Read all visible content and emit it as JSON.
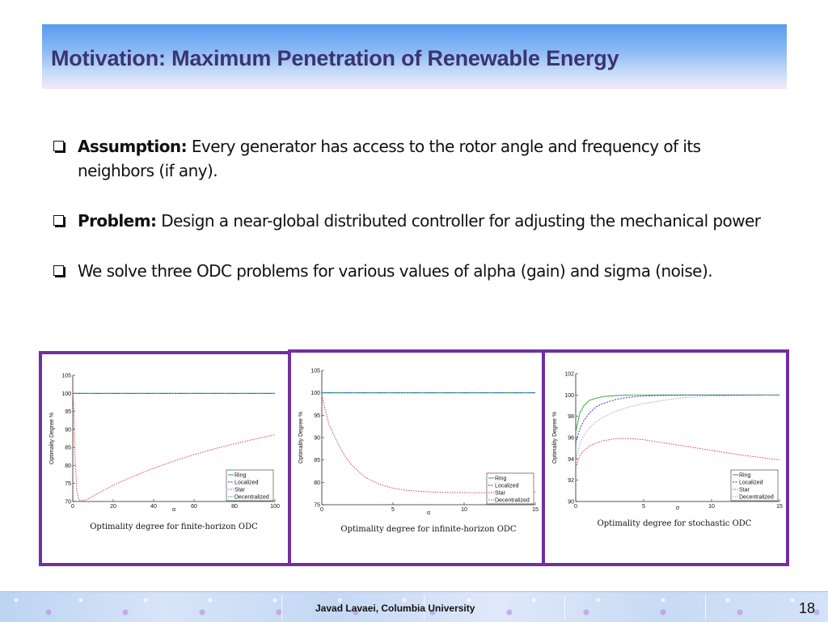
{
  "slide": {
    "title": "Motivation: Maximum Penetration of Renewable Energy",
    "bullets": [
      {
        "lead": "Assumption:",
        "text": " Every generator has access to the rotor angle and frequency of its neighbors (if any)."
      },
      {
        "lead": "Problem:",
        "text": " Design a near-global distributed controller for adjusting the mechanical power"
      },
      {
        "lead": "",
        "text": "We solve three ODC problems for various values of alpha (gain) and sigma (noise)."
      }
    ],
    "footer": {
      "credit": "Javad Lavaei, Columbia University",
      "page_number": "18"
    },
    "frame_color": "#7030a0"
  },
  "chart_data": [
    {
      "type": "line",
      "caption": "Optimality degree for finite-horizon ODC",
      "ylabel": "Optimality Degree %",
      "xlabel": "α",
      "xlim": [
        0,
        100
      ],
      "ylim": [
        70,
        105
      ],
      "xticks": [
        0,
        20,
        40,
        60,
        80,
        100
      ],
      "yticks": [
        70,
        75,
        80,
        85,
        90,
        95,
        100,
        105
      ],
      "legend": [
        "Ring",
        "Localized",
        "Star",
        "Decentralized"
      ],
      "legend_position": "bottom-right",
      "series": [
        {
          "name": "Ring",
          "color": "#20b020",
          "x": [
            0,
            100
          ],
          "y": [
            100,
            100
          ]
        },
        {
          "name": "Localized",
          "color": "#2020e0",
          "x": [
            0,
            100
          ],
          "y": [
            100,
            100
          ]
        },
        {
          "name": "Star",
          "color": "#e03030",
          "x": [
            0,
            0.5,
            1,
            2,
            3,
            5,
            8,
            10,
            20,
            30,
            40,
            50,
            60,
            70,
            80,
            90,
            100
          ],
          "y": [
            100,
            96,
            84,
            73,
            70.5,
            70.2,
            70.8,
            71.5,
            74.5,
            77,
            79.2,
            81.2,
            83,
            84.6,
            86,
            87.3,
            88.5
          ]
        },
        {
          "name": "Decentralized",
          "color": "#008b8b",
          "x": [
            0,
            100
          ],
          "y": [
            100,
            100
          ]
        }
      ]
    },
    {
      "type": "line",
      "caption": "Optimality degree for infinite-horizon ODC",
      "ylabel": "Optimality Degree %",
      "xlabel": "α",
      "xlim": [
        0,
        15
      ],
      "ylim": [
        75,
        105
      ],
      "xticks": [
        0,
        5,
        10,
        15
      ],
      "yticks": [
        75,
        80,
        85,
        90,
        95,
        100,
        105
      ],
      "legend": [
        "Ring",
        "Localized",
        "Star",
        "Decentralized"
      ],
      "legend_position": "bottom-right",
      "series": [
        {
          "name": "Ring",
          "color": "#20b020",
          "x": [
            0,
            15
          ],
          "y": [
            100,
            100
          ]
        },
        {
          "name": "Localized",
          "color": "#2020e0",
          "x": [
            0,
            15
          ],
          "y": [
            100,
            100
          ]
        },
        {
          "name": "Star",
          "color": "#e03030",
          "x": [
            0,
            0.25,
            0.5,
            1,
            1.5,
            2,
            3,
            4,
            5,
            6,
            8,
            10,
            12,
            15
          ],
          "y": [
            99.5,
            96,
            93,
            89.5,
            86.5,
            84.2,
            81.2,
            79.6,
            78.7,
            78.2,
            77.8,
            77.7,
            77.7,
            77.8
          ]
        },
        {
          "name": "Decentralized",
          "color": "#008b8b",
          "x": [
            0,
            15
          ],
          "y": [
            100,
            100
          ]
        }
      ]
    },
    {
      "type": "line",
      "caption": "Optimality degree for stochastic ODC",
      "ylabel": "Optimality Degree %",
      "xlabel": "σ",
      "xlim": [
        0,
        15
      ],
      "ylim": [
        90,
        102
      ],
      "xticks": [
        0,
        5,
        10,
        15
      ],
      "yticks": [
        90,
        92,
        94,
        96,
        98,
        100,
        102
      ],
      "legend": [
        "Ring",
        "Localized",
        "Star",
        "Decentralized"
      ],
      "legend_position": "bottom-right",
      "series": [
        {
          "name": "Ring",
          "color": "#20b020",
          "x": [
            0,
            0.3,
            0.6,
            1,
            1.5,
            2,
            3,
            4,
            6,
            15
          ],
          "y": [
            96.5,
            98.3,
            99.0,
            99.5,
            99.7,
            99.85,
            99.95,
            100,
            100,
            100
          ]
        },
        {
          "name": "Localized",
          "color": "#2020e0",
          "x": [
            0,
            0.3,
            0.6,
            1,
            1.5,
            2,
            3,
            4,
            5,
            6,
            8,
            15
          ],
          "y": [
            95.5,
            96.8,
            97.6,
            98.3,
            98.9,
            99.2,
            99.6,
            99.8,
            99.9,
            99.95,
            100,
            100
          ]
        },
        {
          "name": "Star",
          "color": "#e03030",
          "x": [
            0,
            0.3,
            0.6,
            1,
            1.5,
            2,
            3,
            3.5,
            4,
            5,
            6,
            8,
            10,
            12,
            15
          ],
          "y": [
            93.2,
            94.3,
            94.8,
            95.2,
            95.5,
            95.7,
            95.9,
            95.92,
            95.9,
            95.8,
            95.6,
            95.2,
            94.8,
            94.4,
            93.9
          ]
        },
        {
          "name": "Decentralized",
          "color": "#a0a0a8",
          "x": [
            0,
            0.3,
            0.6,
            1,
            1.5,
            2,
            3,
            4,
            5,
            6,
            7,
            8,
            10,
            15
          ],
          "y": [
            93.8,
            95.4,
            96.2,
            96.9,
            97.5,
            97.9,
            98.5,
            98.9,
            99.2,
            99.4,
            99.6,
            99.75,
            99.9,
            100
          ]
        }
      ]
    }
  ]
}
